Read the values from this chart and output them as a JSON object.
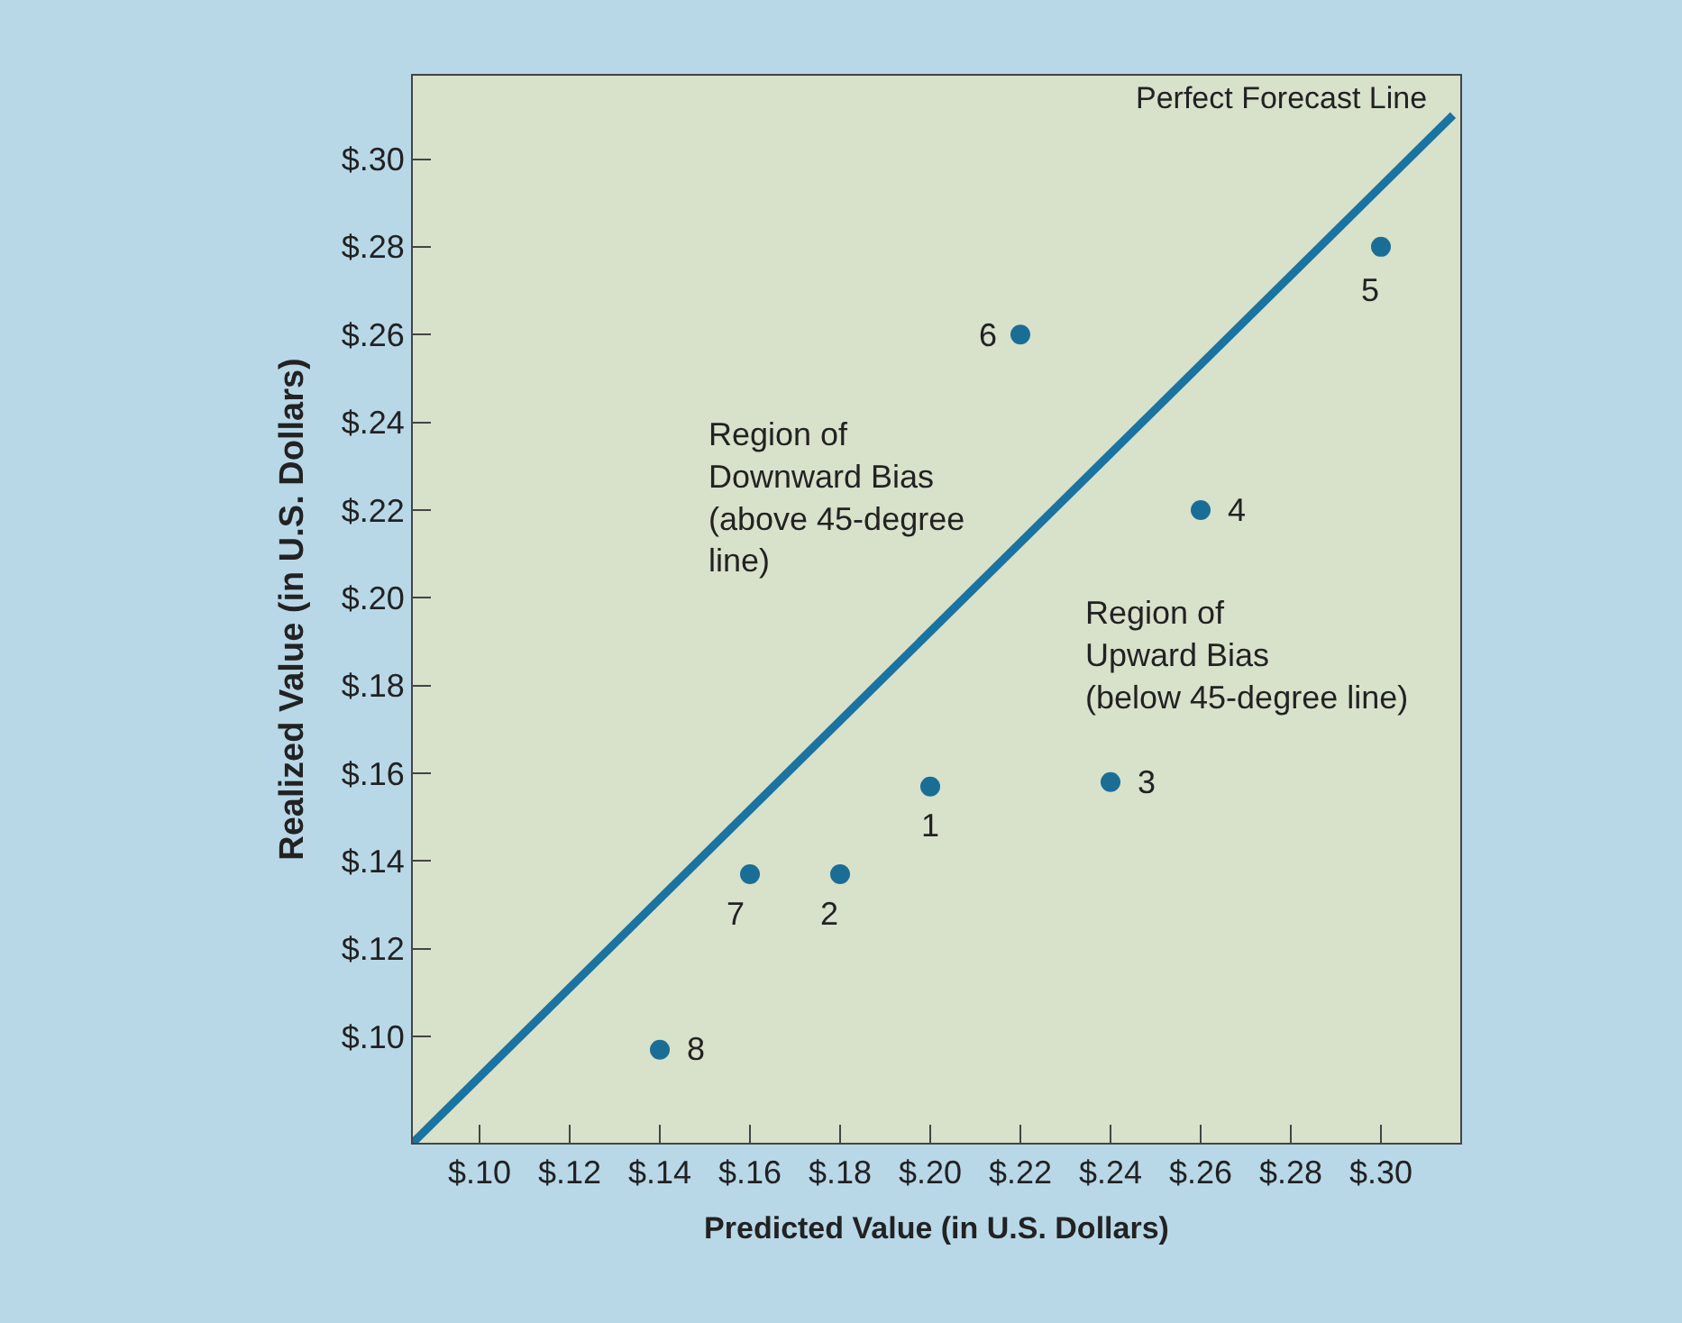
{
  "chart_data": {
    "type": "scatter",
    "xlabel": "Predicted Value (in U.S. Dollars)",
    "ylabel": "Realized Value (in U.S. Dollars)",
    "x": [
      0.2,
      0.18,
      0.24,
      0.26,
      0.3,
      0.22,
      0.16,
      0.14
    ],
    "series": [
      {
        "color": "#1a6e96",
        "marker": "circle",
        "values": [
          0.157,
          0.137,
          0.158,
          0.22,
          0.28,
          0.26,
          0.137,
          0.097
        ]
      },
      {
        "type": "line",
        "marker": "none",
        "name": "Perfect Forecast Line",
        "color": "#1a73a0",
        "x": [
          0.0852,
          0.316
        ],
        "values": [
          0.0758,
          0.31
        ]
      }
    ],
    "annotations": [
      {
        "text": "1",
        "x": 0.2,
        "y": 0.157
      },
      {
        "text": "2",
        "x": 0.18,
        "y": 0.137
      },
      {
        "text": "3",
        "x": 0.24,
        "y": 0.158
      },
      {
        "text": "4",
        "x": 0.26,
        "y": 0.22
      },
      {
        "text": "5",
        "x": 0.3,
        "y": 0.28
      },
      {
        "text": "6",
        "x": 0.22,
        "y": 0.26
      },
      {
        "text": "7",
        "x": 0.16,
        "y": 0.137
      },
      {
        "text": "8",
        "x": 0.14,
        "y": 0.097
      },
      "Region of\nDownward Bias\n(above 45-degree\nline)",
      "Region of\nUpward Bias\n(below 45-degree line)"
    ],
    "xlim": [
      0.0852,
      0.3176
    ],
    "ylim": [
      0.0758,
      0.319
    ],
    "xticks": [
      {
        "value": 0.1,
        "label": "$.10"
      },
      {
        "value": 0.12,
        "label": "$.12"
      },
      {
        "value": 0.14,
        "label": "$.14"
      },
      {
        "value": 0.16,
        "label": "$.16"
      },
      {
        "value": 0.18,
        "label": "$.18"
      },
      {
        "value": 0.2,
        "label": "$.20"
      },
      {
        "value": 0.22,
        "label": "$.22"
      },
      {
        "value": 0.24,
        "label": "$.24"
      },
      {
        "value": 0.26,
        "label": "$.26"
      },
      {
        "value": 0.28,
        "label": "$.28"
      },
      {
        "value": 0.3,
        "label": "$.30"
      }
    ],
    "yticks": [
      {
        "value": 0.1,
        "label": "$.10"
      },
      {
        "value": 0.12,
        "label": "$.12"
      },
      {
        "value": 0.14,
        "label": "$.14"
      },
      {
        "value": 0.16,
        "label": "$.16"
      },
      {
        "value": 0.18,
        "label": "$.18"
      },
      {
        "value": 0.2,
        "label": "$.20"
      },
      {
        "value": 0.22,
        "label": "$.22"
      },
      {
        "value": 0.24,
        "label": "$.24"
      },
      {
        "value": 0.26,
        "label": "$.26"
      },
      {
        "value": 0.28,
        "label": "$.28"
      },
      {
        "value": 0.3,
        "label": "$.30"
      }
    ],
    "grid": false,
    "legend": false
  }
}
